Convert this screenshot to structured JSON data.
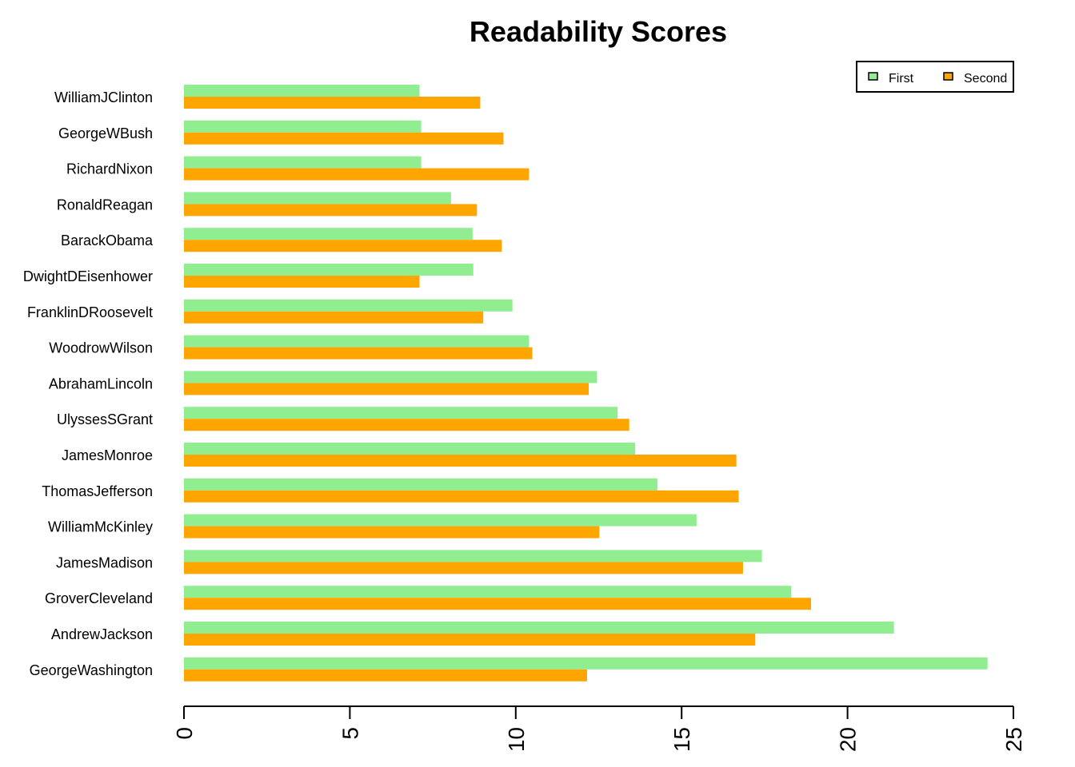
{
  "chart_data": {
    "type": "bar",
    "orientation": "horizontal",
    "title": "Readability Scores",
    "xlabel": "",
    "ylabel": "",
    "xlim": [
      0,
      25
    ],
    "ticks": [
      0,
      5,
      10,
      15,
      20,
      25
    ],
    "tick_labels": [
      "0",
      "5",
      "10",
      "15",
      "20",
      "25"
    ],
    "grid": false,
    "legend_position": "top-right",
    "categories": [
      "WilliamJClinton",
      "GeorgeWBush",
      "RichardNixon",
      "RonaldReagan",
      "BarackObama",
      "DwightDEisenhower",
      "FranklinDRoosevelt",
      "WoodrowWilson",
      "AbrahamLincoln",
      "UlyssesSGrant",
      "JamesMonroe",
      "ThomasJefferson",
      "WilliamMcKinley",
      "JamesMadison",
      "GroverCleveland",
      "AndrewJackson",
      "GeorgeWashington"
    ],
    "series": [
      {
        "name": "First",
        "color": "#90ee90",
        "values": [
          7.1,
          7.15,
          7.15,
          8.05,
          8.7,
          8.72,
          9.9,
          10.4,
          12.45,
          13.07,
          13.6,
          14.27,
          15.45,
          17.42,
          18.3,
          21.4,
          24.22
        ]
      },
      {
        "name": "Second",
        "color": "#ffa500",
        "values": [
          8.93,
          9.63,
          10.4,
          8.83,
          9.58,
          7.1,
          9.02,
          10.5,
          12.2,
          13.42,
          16.65,
          16.72,
          12.52,
          16.85,
          18.9,
          17.22,
          12.15
        ]
      }
    ]
  }
}
